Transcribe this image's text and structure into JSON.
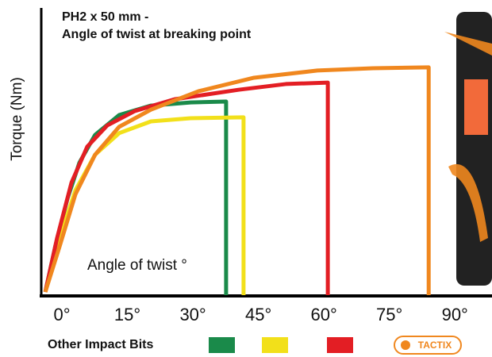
{
  "chart_data": {
    "type": "line",
    "title": "PH2 x 50 mm -",
    "subtitle": "Angle of twist at breaking point",
    "y_label": "Torque (Nm)",
    "annotation": "Angle of twist °",
    "xlim": [
      -5,
      98.5
    ],
    "ylim": [
      0,
      100
    ],
    "xticks": [
      {
        "value": 0,
        "label": "0°"
      },
      {
        "value": 15,
        "label": "15°"
      },
      {
        "value": 30,
        "label": "30°"
      },
      {
        "value": 45,
        "label": "45°"
      },
      {
        "value": 60,
        "label": "60°"
      },
      {
        "value": 75,
        "label": "75°"
      },
      {
        "value": 90,
        "label": "90°"
      }
    ],
    "grid": false,
    "legend": {
      "label": "Other Impact Bits",
      "brand": "TACTIX"
    },
    "series": [
      {
        "color": "#1a8a4a",
        "x": [
          -3.8,
          -1.5,
          1.3,
          4,
          7.6,
          13.1,
          20.4,
          29.5,
          37.6,
          37.6
        ],
        "values": [
          1.1,
          17.1,
          33.7,
          46.1,
          55.8,
          62.7,
          66,
          67.1,
          67.4,
          0
        ]
      },
      {
        "color": "#f2e01a",
        "x": [
          -3.8,
          -0.5,
          3.1,
          7.6,
          13.1,
          20.4,
          29.5,
          41.6,
          41.6
        ],
        "values": [
          1.1,
          19.9,
          36.5,
          48.9,
          56.4,
          60.5,
          61.6,
          61.9,
          0
        ]
      },
      {
        "color": "#e31e24",
        "x": [
          -3.8,
          -1.1,
          2.2,
          5.8,
          10.4,
          16.7,
          25.8,
          40.4,
          51.3,
          60.9,
          60.9
        ],
        "values": [
          1.1,
          19.9,
          39.2,
          51.7,
          59.1,
          64.1,
          68.2,
          71.5,
          73.5,
          74,
          0
        ]
      },
      {
        "color": "#f0871e",
        "x": [
          -3.8,
          -0.5,
          3.1,
          7.6,
          13.1,
          20.4,
          31.3,
          44,
          58.5,
          71.3,
          84,
          84
        ],
        "values": [
          1.1,
          17.1,
          35.1,
          48.9,
          58.6,
          64.6,
          71,
          75.7,
          78.2,
          79,
          79.3,
          0
        ]
      }
    ]
  }
}
